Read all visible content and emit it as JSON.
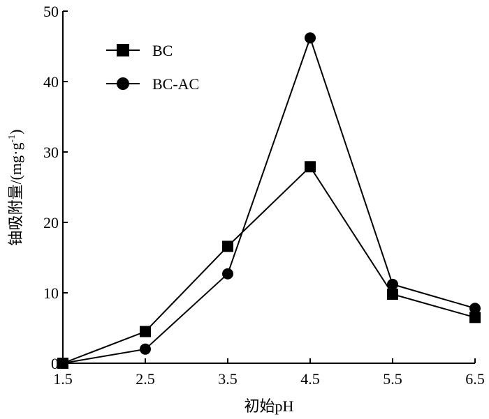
{
  "chart_data": {
    "type": "line",
    "x": [
      1.5,
      2.5,
      3.5,
      4.5,
      5.5,
      6.5
    ],
    "x_tick_labels": [
      "1.5",
      "2.5",
      "3.5",
      "4.5",
      "5.5",
      "6.5"
    ],
    "y_ticks": [
      0,
      10,
      20,
      30,
      40,
      50
    ],
    "xlim": [
      1.5,
      6.5
    ],
    "ylim": [
      0,
      50
    ],
    "xlabel": "初始pH",
    "ylabel_main": "铀吸附量/(mg·g",
    "ylabel_sup": "-1",
    "ylabel_close": ")",
    "legend_position": "top-left",
    "grid": false,
    "series": [
      {
        "name": "BC",
        "marker": "square",
        "values": [
          0,
          4.5,
          16.6,
          27.9,
          9.8,
          6.5
        ]
      },
      {
        "name": "BC-AC",
        "marker": "circle",
        "values": [
          0,
          2.0,
          12.7,
          46.2,
          11.2,
          7.8
        ]
      }
    ]
  }
}
